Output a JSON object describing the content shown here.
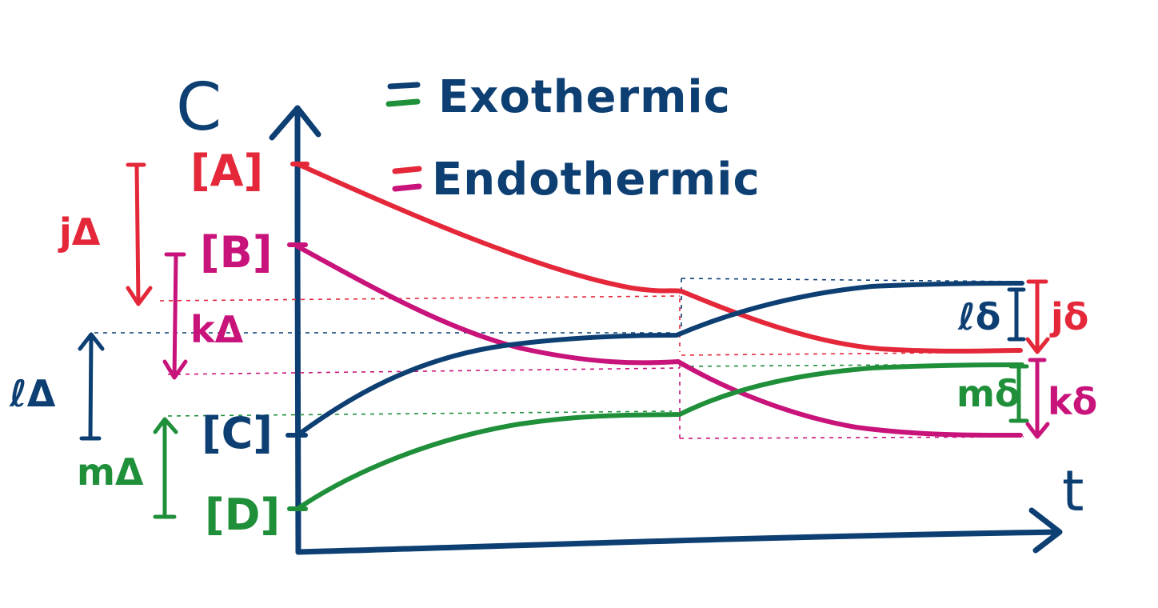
{
  "colors": {
    "navy": "#0d3f73",
    "red": "#e4283a",
    "magenta": "#c8137a",
    "green": "#1f8f3a"
  },
  "axes": {
    "y_label": "C",
    "x_label": "t"
  },
  "legend": {
    "items": [
      {
        "label": "Exothermic",
        "swatches": [
          "navy",
          "green"
        ]
      },
      {
        "label": "Endothermic",
        "swatches": [
          "red",
          "magenta"
        ]
      }
    ]
  },
  "species": {
    "A": {
      "label": "[A]",
      "color": "red"
    },
    "B": {
      "label": "[B]",
      "color": "magenta"
    },
    "C": {
      "label": "[C]",
      "color": "navy"
    },
    "D": {
      "label": "[D]",
      "color": "green"
    }
  },
  "initial_changes": [
    {
      "label": "jΔ",
      "color": "red",
      "direction": "down"
    },
    {
      "label": "kΔ",
      "color": "magenta",
      "direction": "down"
    },
    {
      "label": "ℓΔ",
      "color": "navy",
      "direction": "up"
    },
    {
      "label": "mΔ",
      "color": "green",
      "direction": "up"
    }
  ],
  "shift_changes": [
    {
      "label": "ℓδ",
      "color": "navy"
    },
    {
      "label": "jδ",
      "color": "red"
    },
    {
      "label": "mδ",
      "color": "green"
    },
    {
      "label": "kδ",
      "color": "magenta"
    }
  ]
}
